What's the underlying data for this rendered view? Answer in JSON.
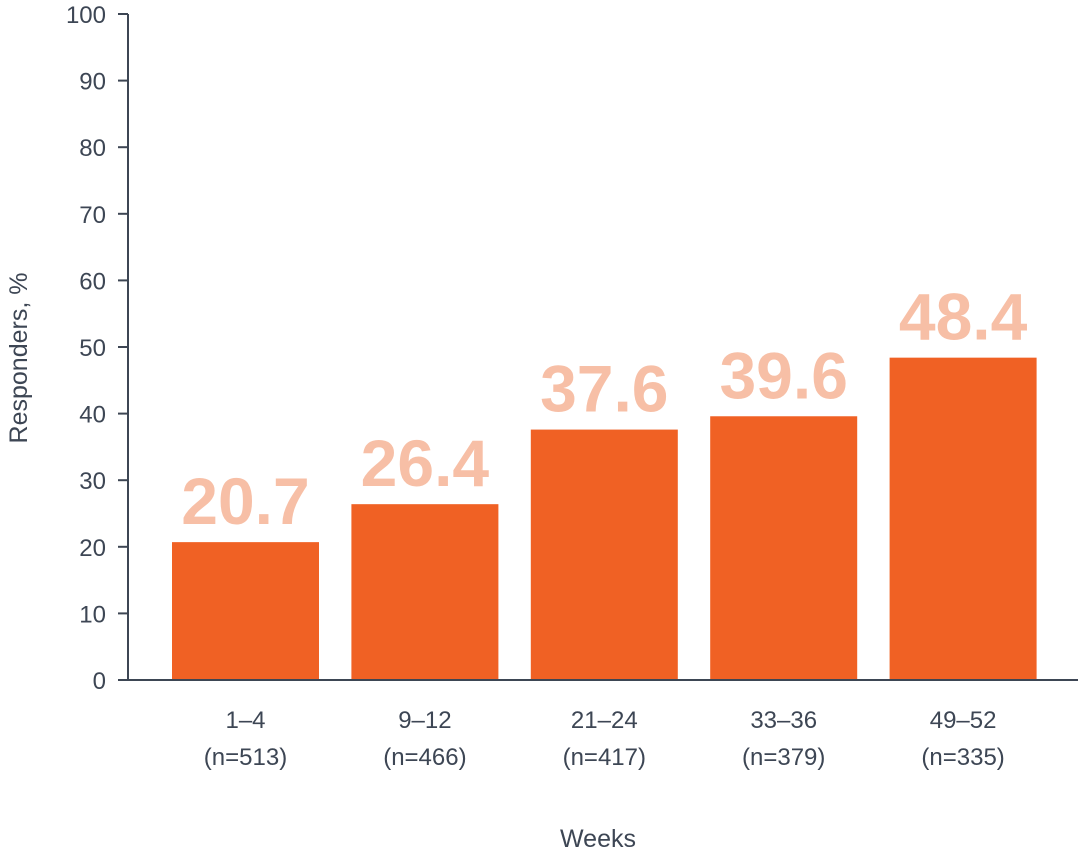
{
  "chart_data": {
    "type": "bar",
    "title": "",
    "xlabel": "Weeks",
    "ylabel": "Responders, %",
    "ylim": [
      0,
      100
    ],
    "yticks": [
      0,
      10,
      20,
      30,
      40,
      50,
      60,
      70,
      80,
      90,
      100
    ],
    "categories": [
      {
        "weeks": "1–4",
        "n": "(n=513)"
      },
      {
        "weeks": "9–12",
        "n": "(n=466)"
      },
      {
        "weeks": "21–24",
        "n": "(n=417)"
      },
      {
        "weeks": "33–36",
        "n": "(n=379)"
      },
      {
        "weeks": "49–52",
        "n": "(n=335)"
      }
    ],
    "values": [
      20.7,
      26.4,
      37.6,
      39.6,
      48.4
    ],
    "data_labels": [
      "20.7",
      "26.4",
      "37.6",
      "39.6",
      "48.4"
    ],
    "colors": {
      "bar": "#f06124",
      "data_label": "#f7bfa6",
      "axis": "#3d4654"
    }
  }
}
